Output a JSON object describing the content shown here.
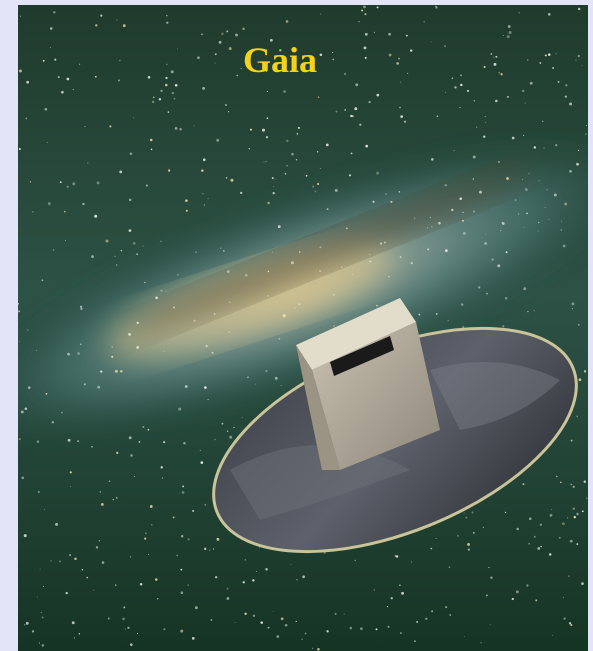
{
  "title": "Gaia"
}
